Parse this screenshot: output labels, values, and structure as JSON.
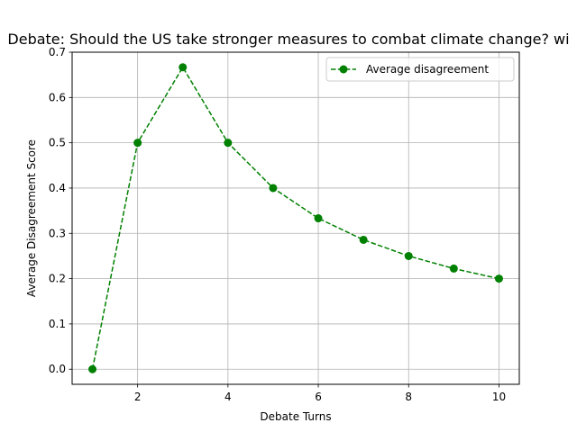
{
  "chart_data": {
    "type": "line",
    "title": "Debate: Should the US take stronger measures to combat climate change? wi",
    "xlabel": "Debate Turns",
    "ylabel": "Average Disagreement Score",
    "xlim": [
      0.55,
      10.45
    ],
    "ylim": [
      -0.0333,
      0.7
    ],
    "xticks": [
      "2",
      "4",
      "6",
      "8",
      "10"
    ],
    "yticks": [
      "0.0",
      "0.1",
      "0.2",
      "0.3",
      "0.4",
      "0.5",
      "0.6",
      "0.7"
    ],
    "grid": true,
    "legend_position": "top-right",
    "series": [
      {
        "name": "Average disagreement",
        "color": "#008000",
        "line_style": "dashed",
        "marker": "circle",
        "x": [
          1,
          2,
          3,
          4,
          5,
          6,
          7,
          8,
          9,
          10
        ],
        "y": [
          0.0,
          0.5,
          0.6667,
          0.5,
          0.4,
          0.3333,
          0.2857,
          0.25,
          0.2222,
          0.2
        ]
      }
    ]
  }
}
